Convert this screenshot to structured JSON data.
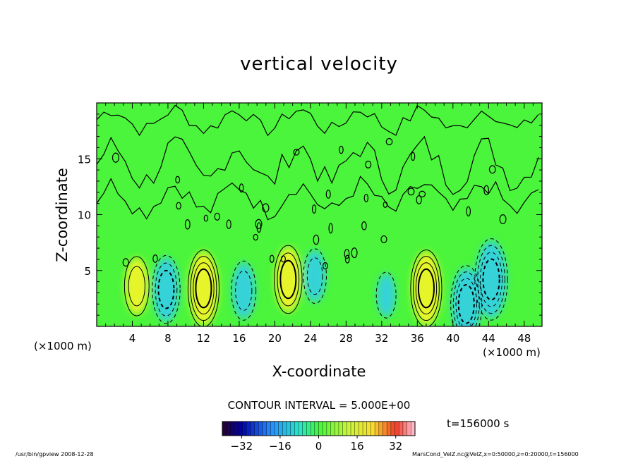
{
  "chart_data": {
    "type": "heatmap",
    "title": "vertical velocity",
    "xlabel": "X-coordinate",
    "ylabel": "Z-coordinate",
    "x_unit_left": "(×1000 m)",
    "x_unit_right": "(×1000 m)",
    "xlim": [
      0,
      50
    ],
    "ylim": [
      0,
      20
    ],
    "x_ticks": [
      4,
      8,
      12,
      16,
      20,
      24,
      28,
      32,
      36,
      40,
      44,
      48
    ],
    "y_ticks": [
      5,
      10,
      15
    ],
    "contour_interval_text": "CONTOUR INTERVAL = 5.000E+00",
    "colorbar": {
      "range": [
        -40,
        40
      ],
      "ticks": [
        -32,
        -16,
        0,
        16,
        32
      ],
      "tick_labels": [
        "−32",
        "−16",
        "0",
        "16",
        "32"
      ]
    },
    "features": [
      {
        "x": 4.5,
        "z": 3.6,
        "value": 12
      },
      {
        "x": 12.0,
        "z": 3.4,
        "value": 20
      },
      {
        "x": 21.5,
        "z": 4.2,
        "value": 16
      },
      {
        "x": 37.0,
        "z": 3.4,
        "value": 20
      },
      {
        "x": 7.8,
        "z": 3.3,
        "value": -16
      },
      {
        "x": 16.5,
        "z": 3.2,
        "value": -12
      },
      {
        "x": 24.5,
        "z": 4.5,
        "value": -10
      },
      {
        "x": 41.5,
        "z": 2.0,
        "value": -20
      },
      {
        "x": 44.3,
        "z": 4.2,
        "value": -22
      },
      {
        "x": 32.5,
        "z": 2.8,
        "value": -6
      }
    ],
    "timestamp": "t=156000 s"
  },
  "footer": {
    "left": "/usr/bin/gpview   2008-12-28",
    "right": "MarsCond_VelZ.nc@VelZ,x=0:50000,z=0:20000,t=156000"
  },
  "colors": {
    "field_background": "#4bf53b",
    "positive": "#e6f52c",
    "negative": "#35d3d8"
  }
}
